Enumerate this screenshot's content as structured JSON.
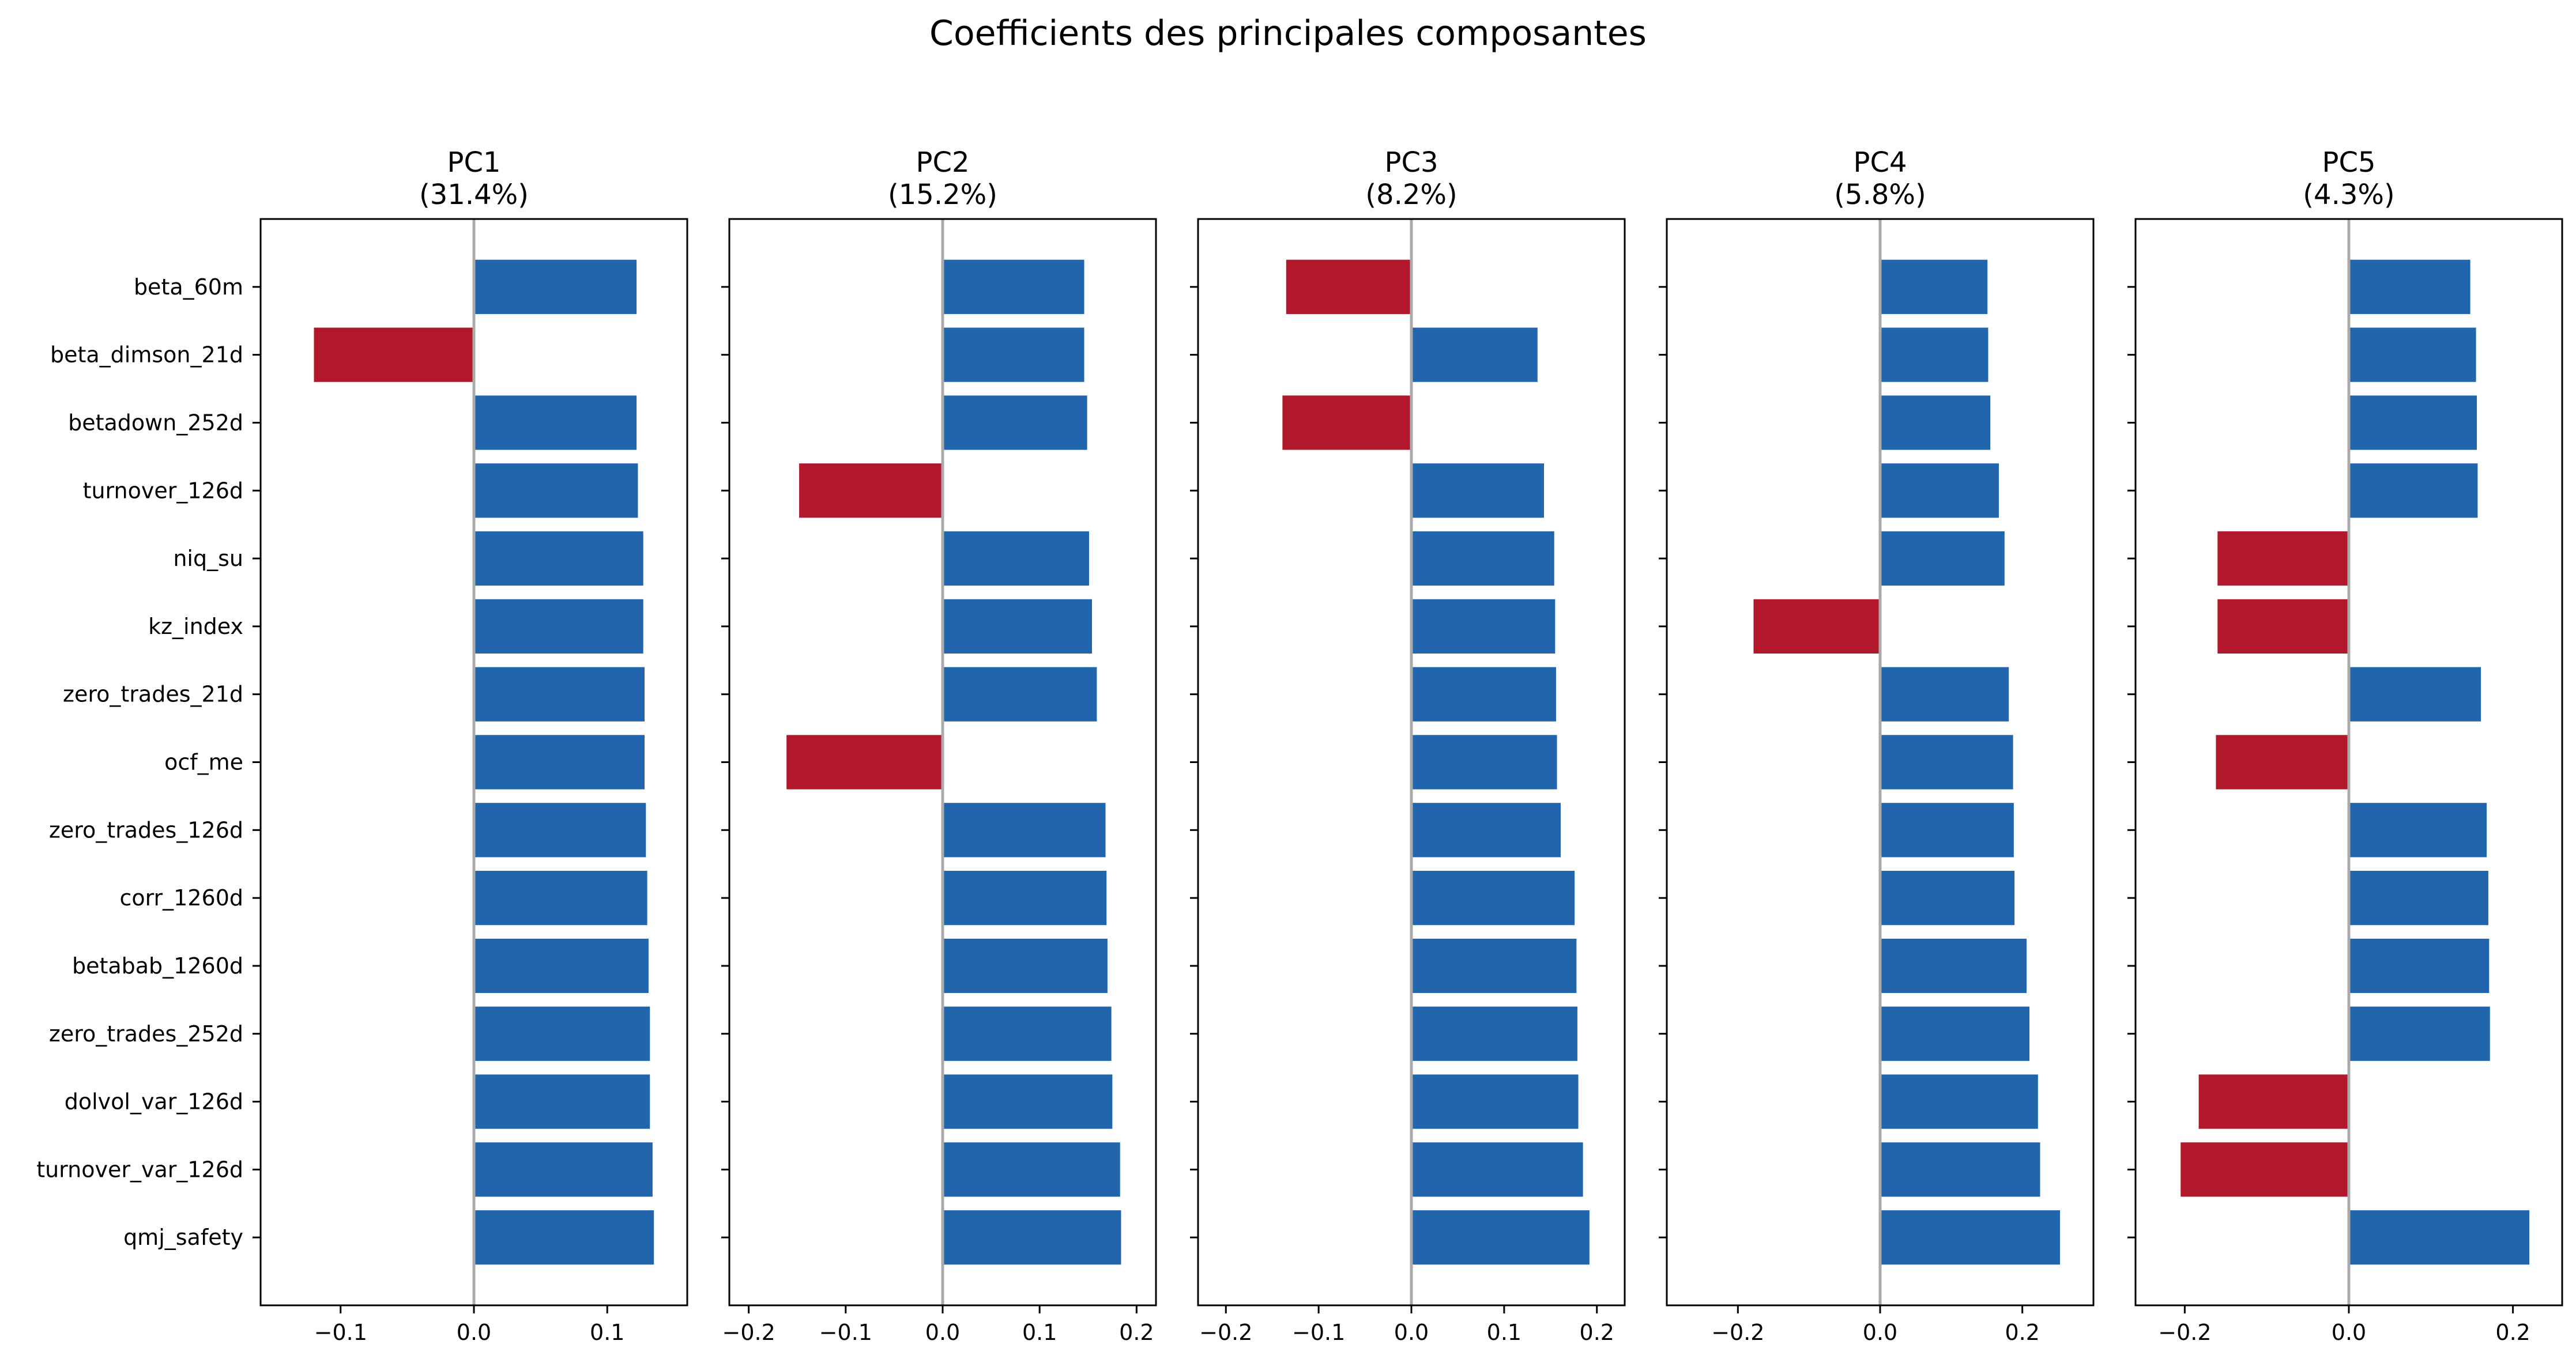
{
  "chart_data": {
    "type": "bar",
    "orientation": "horizontal",
    "title": "Coefficients des principales composantes",
    "categories": [
      "beta_60m",
      "beta_dimson_21d",
      "betadown_252d",
      "turnover_126d",
      "niq_su",
      "kz_index",
      "zero_trades_21d",
      "ocf_me",
      "zero_trades_126d",
      "corr_1260d",
      "betabab_1260d",
      "zero_trades_252d",
      "dolvol_var_126d",
      "turnover_var_126d",
      "qmj_safety"
    ],
    "colors": {
      "positive": "#2166ac",
      "negative": "#b2182b",
      "zero_line": "#aaaaaa"
    },
    "panels": [
      {
        "title_line1": "PC1",
        "title_line2": "(31.4%)",
        "xlim": [
          -0.16,
          0.16
        ],
        "xticks": [
          -0.1,
          0.0,
          0.1
        ],
        "xtick_labels": [
          "−0.1",
          "0.0",
          "0.1"
        ],
        "values": [
          0.122,
          -0.12,
          0.122,
          0.123,
          0.127,
          0.127,
          0.128,
          0.128,
          0.129,
          0.13,
          0.131,
          0.132,
          0.132,
          0.134,
          0.135
        ]
      },
      {
        "title_line1": "PC2",
        "title_line2": "(15.2%)",
        "xlim": [
          -0.22,
          0.22
        ],
        "xticks": [
          -0.2,
          -0.1,
          0.0,
          0.1,
          0.2
        ],
        "xtick_labels": [
          "−0.2",
          "−0.1",
          "0.0",
          "0.1",
          "0.2"
        ],
        "values": [
          0.146,
          0.146,
          0.149,
          -0.148,
          0.151,
          0.154,
          0.159,
          -0.161,
          0.168,
          0.169,
          0.17,
          0.174,
          0.175,
          0.183,
          0.184
        ]
      },
      {
        "title_line1": "PC3",
        "title_line2": "(8.2%)",
        "xlim": [
          -0.23,
          0.23
        ],
        "xticks": [
          -0.2,
          -0.1,
          0.0,
          0.1,
          0.2
        ],
        "xtick_labels": [
          "−0.2",
          "−0.1",
          "0.0",
          "0.1",
          "0.2"
        ],
        "values": [
          -0.135,
          0.136,
          -0.139,
          0.143,
          0.154,
          0.155,
          0.156,
          0.157,
          0.161,
          0.176,
          0.178,
          0.179,
          0.18,
          0.185,
          0.192
        ]
      },
      {
        "title_line1": "PC4",
        "title_line2": "(5.8%)",
        "xlim": [
          -0.3,
          0.3
        ],
        "xticks": [
          -0.2,
          0.0,
          0.2
        ],
        "xtick_labels": [
          "−0.2",
          "0.0",
          "0.2"
        ],
        "values": [
          0.151,
          0.152,
          0.155,
          0.167,
          0.175,
          -0.178,
          0.181,
          0.187,
          0.188,
          0.189,
          0.206,
          0.21,
          0.222,
          0.225,
          0.253
        ]
      },
      {
        "title_line1": "PC5",
        "title_line2": "(4.3%)",
        "xlim": [
          -0.26,
          0.26
        ],
        "xticks": [
          -0.2,
          0.0,
          0.2
        ],
        "xtick_labels": [
          "−0.2",
          "0.0",
          "0.2"
        ],
        "values": [
          0.148,
          0.155,
          0.156,
          0.157,
          -0.16,
          -0.16,
          0.161,
          -0.162,
          0.168,
          0.17,
          0.171,
          0.172,
          -0.183,
          -0.205,
          0.22
        ]
      }
    ]
  }
}
